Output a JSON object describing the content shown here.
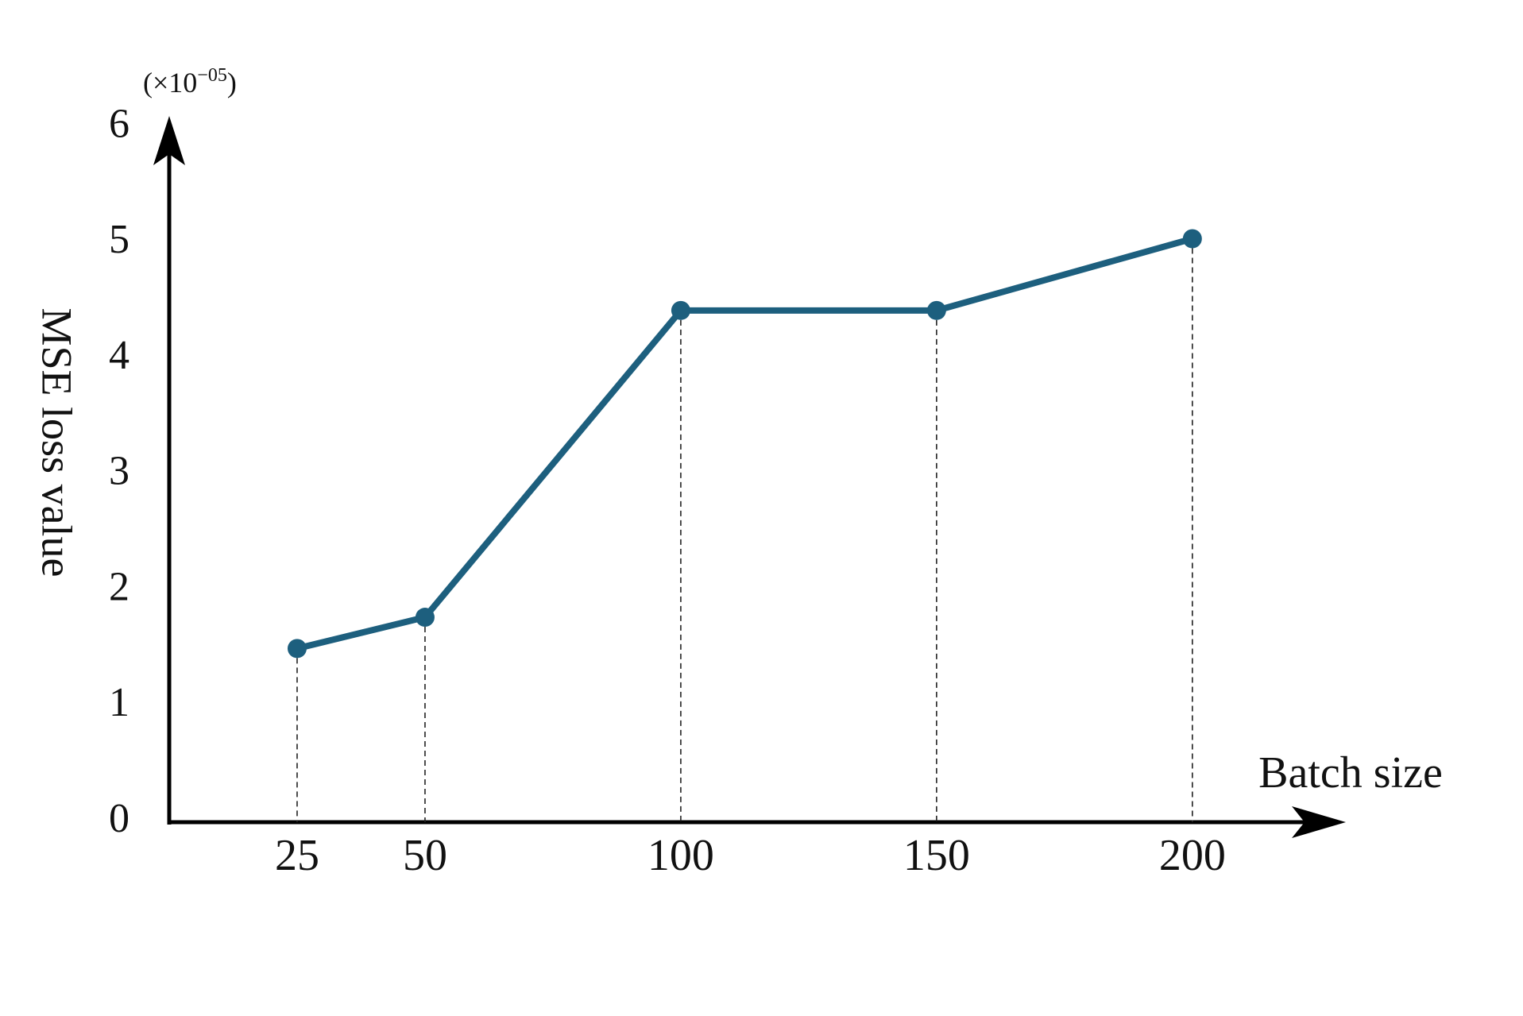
{
  "chart_data": {
    "type": "line",
    "y_scale": {
      "prefix": "(×10",
      "exponent": "−05",
      "suffix": ")"
    },
    "xlabel": "Batch size",
    "ylabel": "MSE loss value",
    "x": [
      25,
      50,
      100,
      150,
      200
    ],
    "series": [
      {
        "name": "MSE loss",
        "color": "#1d5f7e",
        "values": [
          1.5,
          1.77,
          4.42,
          4.42,
          5.04
        ]
      }
    ],
    "xlim": [
      0,
      230
    ],
    "xticks": [
      25,
      50,
      100,
      150,
      200
    ],
    "ylim": [
      0,
      6.1
    ],
    "yticks": [
      0,
      1,
      2,
      3,
      4,
      5,
      6
    ],
    "drop_lines": true
  }
}
